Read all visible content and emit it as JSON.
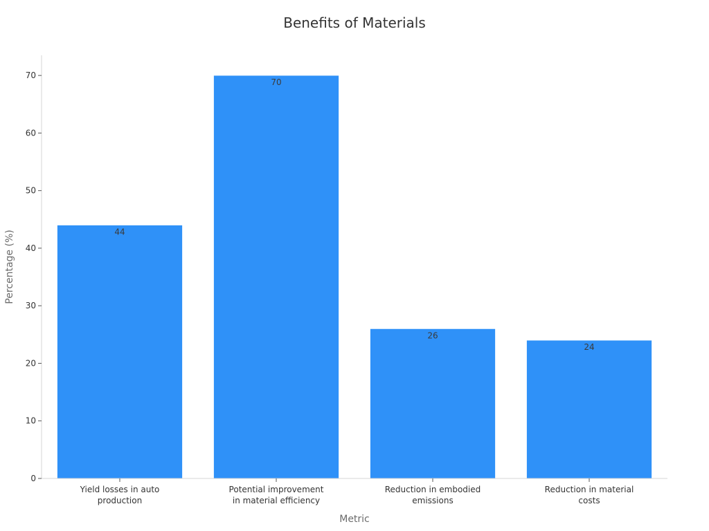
{
  "chart_data": {
    "type": "bar",
    "title": "Benefits of Materials",
    "xlabel": "Metric",
    "ylabel": "Percentage (%)",
    "categories": [
      [
        "Yield losses in auto",
        "production"
      ],
      [
        "Potential improvement",
        "in material efficiency"
      ],
      [
        "Reduction in embodied",
        "emissions"
      ],
      [
        "Reduction in material",
        "costs"
      ]
    ],
    "values": [
      44,
      70,
      26,
      24
    ],
    "ylim": [
      0,
      73.5
    ],
    "yticks": [
      0,
      10,
      20,
      30,
      40,
      50,
      60,
      70
    ],
    "bar_color": "#2f91f8",
    "grid": false,
    "legend": "none"
  }
}
